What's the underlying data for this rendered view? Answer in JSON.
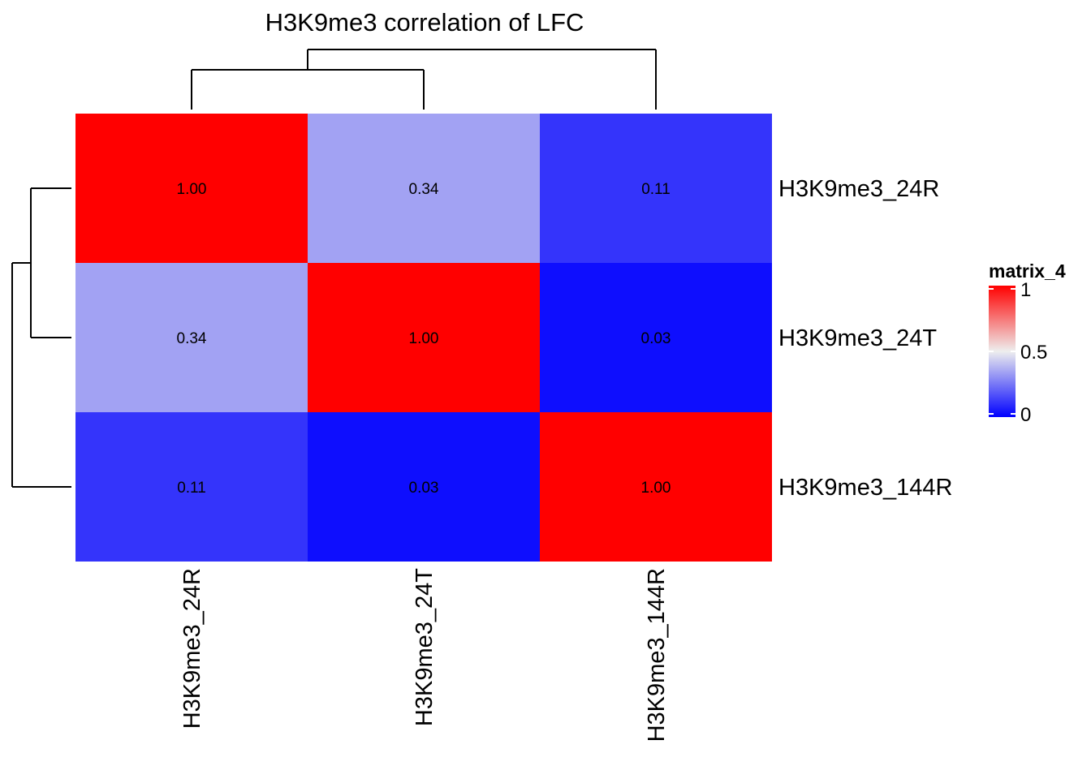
{
  "chart_data": {
    "type": "heatmap",
    "title": "H3K9me3 correlation of LFC",
    "rows": [
      "H3K9me3_24R",
      "H3K9me3_24T",
      "H3K9me3_144R"
    ],
    "columns": [
      "H3K9me3_24R",
      "H3K9me3_24T",
      "H3K9me3_144R"
    ],
    "values": [
      [
        1.0,
        0.34,
        0.11
      ],
      [
        0.34,
        1.0,
        0.03
      ],
      [
        0.11,
        0.03,
        1.0
      ]
    ],
    "value_labels": [
      [
        "1.00",
        "0.34",
        "0.11"
      ],
      [
        "0.34",
        "1.00",
        "0.03"
      ],
      [
        "0.11",
        "0.03",
        "1.00"
      ]
    ],
    "colorscale": {
      "low": {
        "value": 0,
        "color": "#0000ff"
      },
      "mid": {
        "value": 0.5,
        "color": "#eeeeee"
      },
      "high": {
        "value": 1,
        "color": "#ff0000"
      }
    },
    "legend": {
      "title": "matrix_4",
      "ticks": [
        "1",
        "0.5",
        "0"
      ],
      "tick_values": [
        1,
        0.5,
        0
      ],
      "placement": "right"
    },
    "row_dendrogram": true,
    "column_dendrogram": true
  }
}
